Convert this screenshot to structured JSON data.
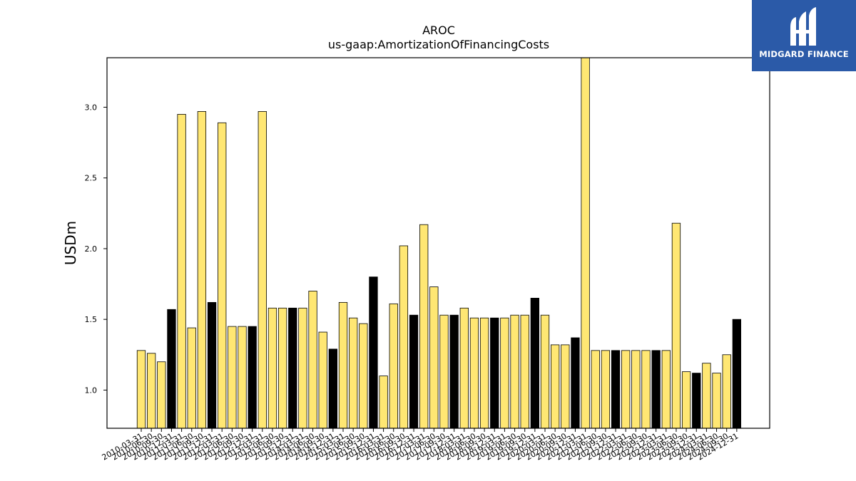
{
  "chart_data": {
    "type": "bar",
    "title": "AROC",
    "subtitle": "us-gaap:AmortizationOfFinancingCosts",
    "ylabel": "USDm",
    "xlabel": "",
    "ylim": [
      0.73,
      3.35
    ],
    "yticks": [
      "1.0",
      "1.5",
      "2.0",
      "2.5",
      "3.0"
    ],
    "colors": {
      "quarter": "#ffe773",
      "annual": "#000000",
      "edge": "#000000"
    },
    "categories": [
      "2010-03-31",
      "2010-06-30",
      "2010-09-30",
      "2010-12-31",
      "2011-03-31",
      "2011-06-30",
      "2011-09-30",
      "2011-12-31",
      "2012-03-31",
      "2012-06-30",
      "2012-09-30",
      "2012-12-31",
      "2013-03-31",
      "2013-06-30",
      "2013-09-30",
      "2013-12-31",
      "2014-03-31",
      "2014-06-30",
      "2014-09-30",
      "2014-12-31",
      "2015-03-31",
      "2015-06-30",
      "2015-09-30",
      "2015-12-31",
      "2016-03-31",
      "2016-06-30",
      "2016-09-30",
      "2016-12-31",
      "2017-03-31",
      "2017-06-30",
      "2017-09-30",
      "2017-12-31",
      "2018-03-31",
      "2018-06-30",
      "2018-09-30",
      "2018-12-31",
      "2019-03-31",
      "2019-06-30",
      "2019-09-30",
      "2019-12-31",
      "2020-03-31",
      "2020-06-30",
      "2020-09-30",
      "2020-12-31",
      "2021-03-31",
      "2021-06-30",
      "2021-09-30",
      "2021-12-31",
      "2022-03-31",
      "2022-06-30",
      "2022-09-30",
      "2022-12-31",
      "2023-03-31",
      "2023-06-30",
      "2023-09-30",
      "2023-12-31",
      "2024-03-31",
      "2024-06-30",
      "2024-09-30",
      "2024-12-31"
    ],
    "values": [
      1.28,
      1.26,
      1.2,
      1.57,
      2.95,
      1.44,
      2.97,
      1.62,
      2.89,
      1.45,
      1.45,
      1.45,
      2.97,
      1.58,
      1.58,
      1.58,
      1.58,
      1.7,
      1.41,
      1.29,
      1.62,
      1.51,
      1.47,
      1.8,
      1.1,
      1.61,
      2.02,
      1.53,
      2.17,
      1.73,
      1.53,
      1.53,
      1.58,
      1.51,
      1.51,
      1.51,
      1.51,
      1.53,
      1.53,
      1.65,
      1.53,
      1.32,
      1.32,
      1.37,
      3.4,
      1.28,
      1.28,
      1.28,
      1.28,
      1.28,
      1.28,
      1.28,
      1.28,
      2.18,
      1.13,
      1.12,
      1.19,
      1.12,
      1.25,
      1.5
    ],
    "annual": [
      false,
      false,
      false,
      true,
      false,
      false,
      false,
      true,
      false,
      false,
      false,
      true,
      false,
      false,
      false,
      true,
      false,
      false,
      false,
      true,
      false,
      false,
      false,
      true,
      false,
      false,
      false,
      true,
      false,
      false,
      false,
      true,
      false,
      false,
      false,
      true,
      false,
      false,
      false,
      true,
      false,
      false,
      false,
      true,
      false,
      false,
      false,
      true,
      false,
      false,
      false,
      true,
      false,
      false,
      false,
      true,
      false,
      false,
      false,
      true
    ],
    "grid": false,
    "legend": "none"
  },
  "logo": {
    "text": "MIDGARD FINANCE"
  }
}
